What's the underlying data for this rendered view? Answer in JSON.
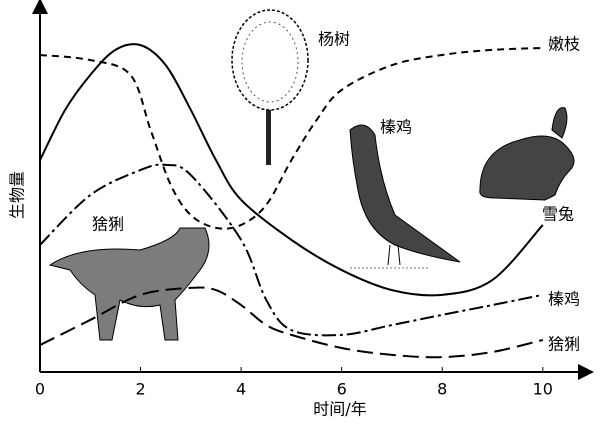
{
  "chart_data": {
    "type": "line",
    "xlabel": "时间/年",
    "ylabel": "生物量",
    "xlim": [
      0,
      10.8
    ],
    "xticks": [
      0,
      2,
      4,
      6,
      8,
      10
    ],
    "ylim": [
      0,
      100
    ],
    "series": [
      {
        "name": "嫩枝",
        "color": "#000",
        "dash": "7 5",
        "x": [
          0,
          1,
          1.8,
          2.2,
          2.6,
          3,
          3.5,
          4,
          4.5,
          5,
          5.5,
          6,
          7,
          8,
          9,
          10
        ],
        "values": [
          87.1,
          85.7,
          81.6,
          66.5,
          51.4,
          43.1,
          39.6,
          40.4,
          45.9,
          58.2,
          69.2,
          77.5,
          84.3,
          87.1,
          88.5,
          89.0
        ]
      },
      {
        "name": "雪兔",
        "color": "#000",
        "dash": "none",
        "x": [
          0,
          0.5,
          1,
          1.5,
          2,
          2.5,
          3,
          3.5,
          4,
          5,
          6,
          7,
          8,
          9,
          10
        ],
        "values": [
          58.2,
          72.0,
          81.6,
          88.5,
          89.8,
          84.3,
          72.0,
          58.2,
          47.3,
          36.3,
          28.0,
          22.5,
          21.2,
          25.3,
          40.4
        ]
      },
      {
        "name": "榛鸡",
        "color": "#000",
        "dash": "14 4 3 4",
        "x": [
          0,
          1,
          2,
          2.5,
          3,
          4,
          4.5,
          5,
          6,
          7,
          8,
          9,
          10
        ],
        "values": [
          34.9,
          48.6,
          55.5,
          56.9,
          54.1,
          36.3,
          19.8,
          11.5,
          10.2,
          12.9,
          15.7,
          18.4,
          21.2
        ]
      },
      {
        "name": "猞猁",
        "color": "#000",
        "dash": "16 7",
        "x": [
          0,
          1,
          2,
          3,
          3.5,
          4,
          4.5,
          5,
          6,
          7,
          8,
          9,
          10
        ],
        "values": [
          7.4,
          14.3,
          21.2,
          23.1,
          22.5,
          18.4,
          12.9,
          10.2,
          6.6,
          4.7,
          4.1,
          5.5,
          8.8
        ]
      }
    ],
    "annotations": [
      "杨树",
      "榛鸡",
      "猞猁"
    ]
  }
}
